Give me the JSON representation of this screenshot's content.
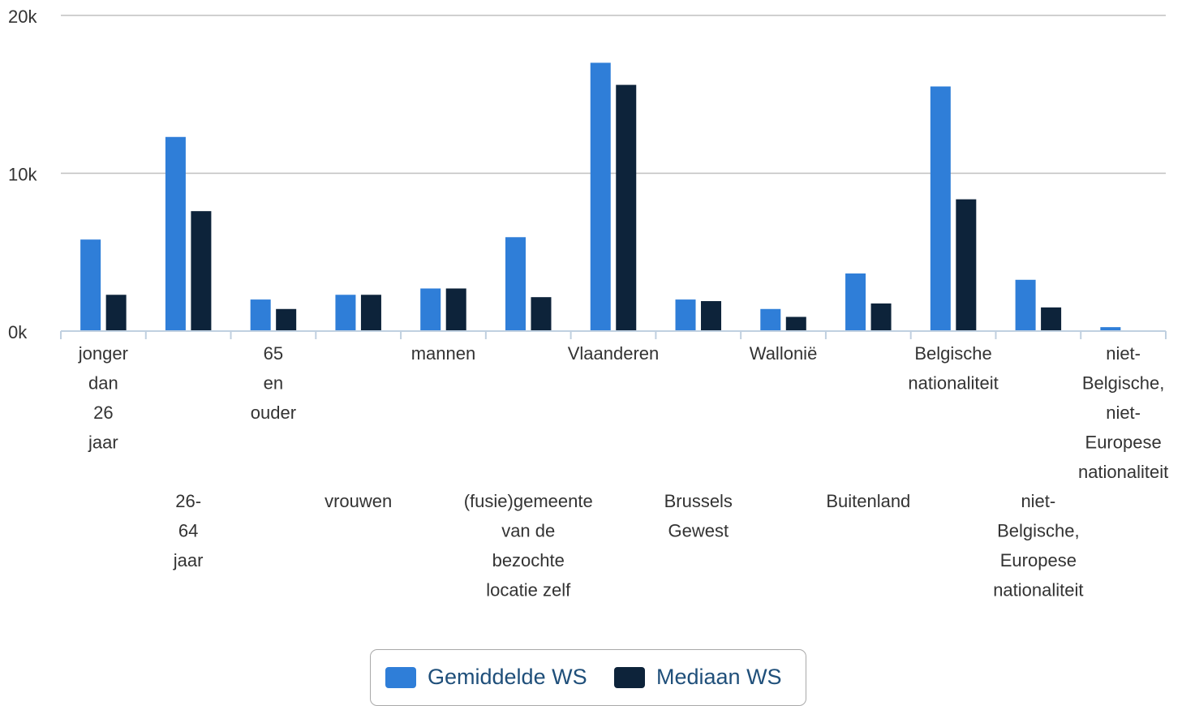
{
  "chart_data": {
    "type": "bar",
    "categories": [
      [
        "jonger",
        "dan",
        "26",
        "jaar"
      ],
      [
        "26-",
        "64",
        "jaar"
      ],
      [
        "65",
        "en",
        "ouder"
      ],
      [
        "vrouwen"
      ],
      [
        "mannen"
      ],
      [
        "(fusie)gemeente",
        "van de",
        "bezochte",
        "locatie zelf"
      ],
      [
        "Vlaanderen"
      ],
      [
        "Brussels",
        "Gewest"
      ],
      [
        "Wallonië"
      ],
      [
        "Buitenland"
      ],
      [
        "Belgische",
        "nationaliteit"
      ],
      [
        "niet-",
        "Belgische,",
        "Europese",
        "nationaliteit"
      ],
      [
        "niet-",
        "Belgische,",
        "niet-",
        "Europese",
        "nationaliteit"
      ]
    ],
    "series": [
      {
        "name": "Gemiddelde WS",
        "color": "#2f7ed8",
        "values": [
          5800,
          12300,
          2000,
          2300,
          2700,
          5950,
          17000,
          2000,
          1400,
          3650,
          15500,
          3250,
          250
        ]
      },
      {
        "name": "Mediaan WS",
        "color": "#0d233a",
        "values": [
          2300,
          7600,
          1400,
          2300,
          2700,
          2150,
          15600,
          1900,
          900,
          1750,
          8350,
          1500,
          0
        ]
      }
    ],
    "yticks": [
      "0k",
      "10k",
      "20k"
    ],
    "ylim": [
      0,
      20000
    ],
    "grid": true,
    "legend_position": "bottom-center"
  }
}
